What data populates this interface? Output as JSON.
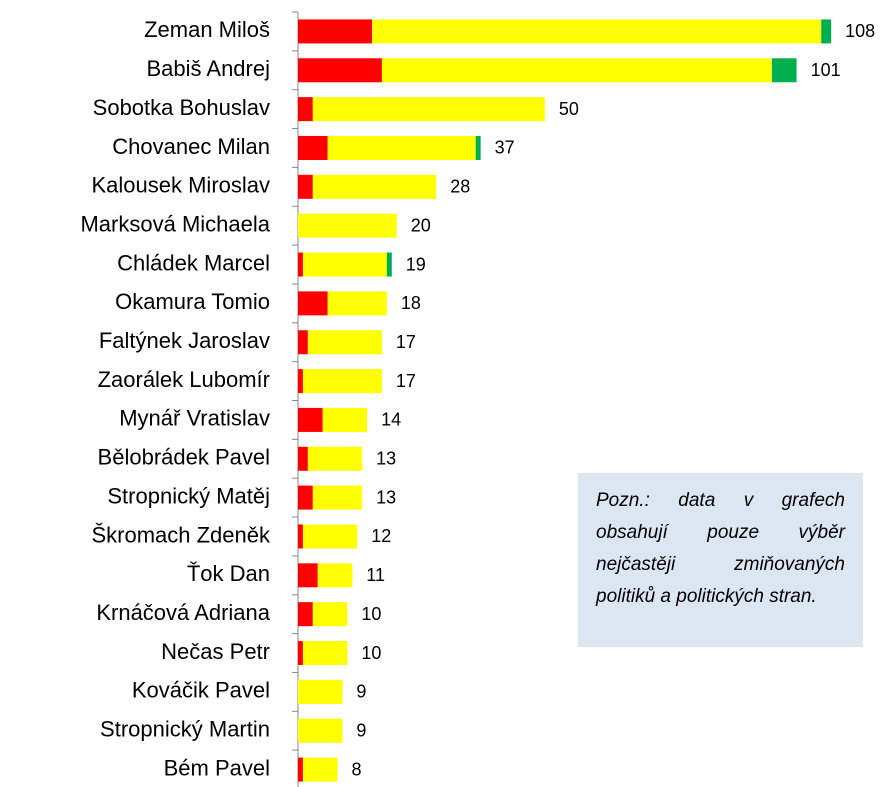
{
  "chart_data": {
    "type": "stacked-bar-horizontal",
    "categories": [
      "Zeman Miloš",
      "Babiš Andrej",
      "Sobotka Bohuslav",
      "Chovanec Milan",
      "Kalousek Miroslav",
      "Marksová Michaela",
      "Chládek Marcel",
      "Okamura Tomio",
      "Faltýnek Jaroslav",
      "Zaorálek Lubomír",
      "Mynář Vratislav",
      "Bělobrádek Pavel",
      "Stropnický Matěj",
      "Škromach Zdeněk",
      "Ťok Dan",
      "Krnáčová Adriana",
      "Nečas Petr",
      "Kováčik Pavel",
      "Stropnický Martin",
      "Bém Pavel"
    ],
    "series": [
      {
        "color": "#ff0000",
        "values": [
          15,
          17,
          3,
          6,
          3,
          0,
          1,
          6,
          2,
          1,
          5,
          2,
          3,
          1,
          4,
          3,
          1,
          0,
          0,
          1
        ]
      },
      {
        "color": "#ffff00",
        "values": [
          91,
          79,
          47,
          30,
          25,
          20,
          17,
          12,
          15,
          16,
          9,
          11,
          10,
          11,
          7,
          7,
          9,
          9,
          9,
          7
        ]
      },
      {
        "color": "#00b050",
        "values": [
          2,
          5,
          0,
          1,
          0,
          0,
          1,
          0,
          0,
          0,
          0,
          0,
          0,
          0,
          0,
          0,
          0,
          0,
          0,
          0
        ]
      }
    ],
    "totals": [
      108,
      101,
      50,
      37,
      28,
      20,
      19,
      18,
      17,
      17,
      14,
      13,
      13,
      12,
      11,
      10,
      10,
      9,
      9,
      8
    ],
    "xlim": [
      0,
      110
    ],
    "note": "Pozn.: data v grafech obsahují pouze výběr nejčastěji zmiňovaných politiků a politických stran."
  }
}
